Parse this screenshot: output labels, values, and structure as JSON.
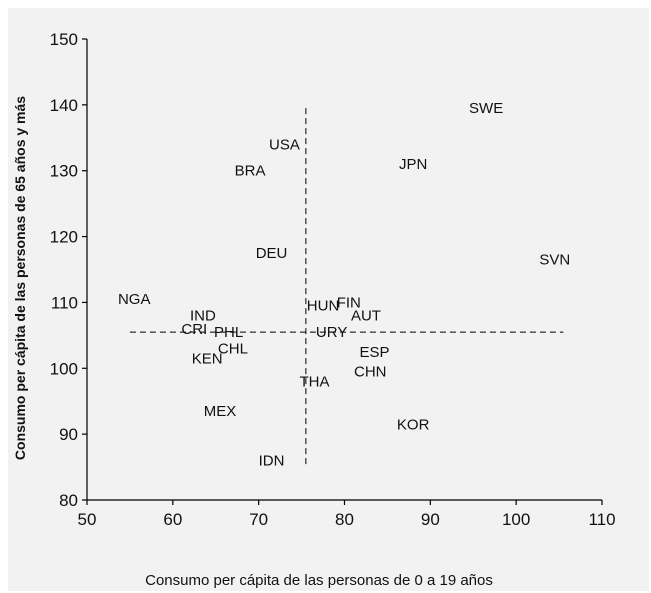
{
  "chart_data": {
    "type": "scatter",
    "title": "",
    "xlabel": "Consumo per cápita de las personas de 0 a 19 años",
    "ylabel": "Consumo per cápita de las personas de 65 años y más",
    "xlim": [
      50,
      110
    ],
    "ylim": [
      80,
      150
    ],
    "x_ticks": [
      "50",
      "60",
      "70",
      "80",
      "90",
      "100",
      "110"
    ],
    "y_ticks": [
      "80",
      "90",
      "100",
      "110",
      "120",
      "130",
      "140",
      "150"
    ],
    "grid": false,
    "legend": "none",
    "reference_lines": {
      "vertical": {
        "x": 75.5,
        "y_from": 85,
        "y_to": 139.5
      },
      "horizontal": {
        "y": 105.5,
        "x_from": 55,
        "x_to": 105.5
      }
    },
    "points": [
      {
        "label": "SWE",
        "x": 96.5,
        "y": 139.5
      },
      {
        "label": "USA",
        "x": 73,
        "y": 134,
        "color": "#707070"
      },
      {
        "label": "JPN",
        "x": 88,
        "y": 131
      },
      {
        "label": "BRA",
        "x": 69,
        "y": 130
      },
      {
        "label": "DEU",
        "x": 71.5,
        "y": 117.5
      },
      {
        "label": "SVN",
        "x": 104.5,
        "y": 116.5
      },
      {
        "label": "NGA",
        "x": 55.5,
        "y": 110.5
      },
      {
        "label": "HUN",
        "x": 77.5,
        "y": 109.5
      },
      {
        "label": "FIN",
        "x": 80.5,
        "y": 110
      },
      {
        "label": "IND",
        "x": 63.5,
        "y": 108
      },
      {
        "label": "AUT",
        "x": 82.5,
        "y": 108
      },
      {
        "label": "CRI",
        "x": 62.5,
        "y": 106
      },
      {
        "label": "PHL",
        "x": 66.5,
        "y": 105.5
      },
      {
        "label": "URY",
        "x": 78.5,
        "y": 105.5
      },
      {
        "label": "CHL",
        "x": 67,
        "y": 103
      },
      {
        "label": "ESP",
        "x": 83.5,
        "y": 102.5
      },
      {
        "label": "KEN",
        "x": 64,
        "y": 101.5
      },
      {
        "label": "CHN",
        "x": 83,
        "y": 99.5
      },
      {
        "label": "THA",
        "x": 76.5,
        "y": 98
      },
      {
        "label": "MEX",
        "x": 65.5,
        "y": 93.5
      },
      {
        "label": "KOR",
        "x": 88,
        "y": 91.5
      },
      {
        "label": "IDN",
        "x": 71.5,
        "y": 86
      }
    ]
  }
}
